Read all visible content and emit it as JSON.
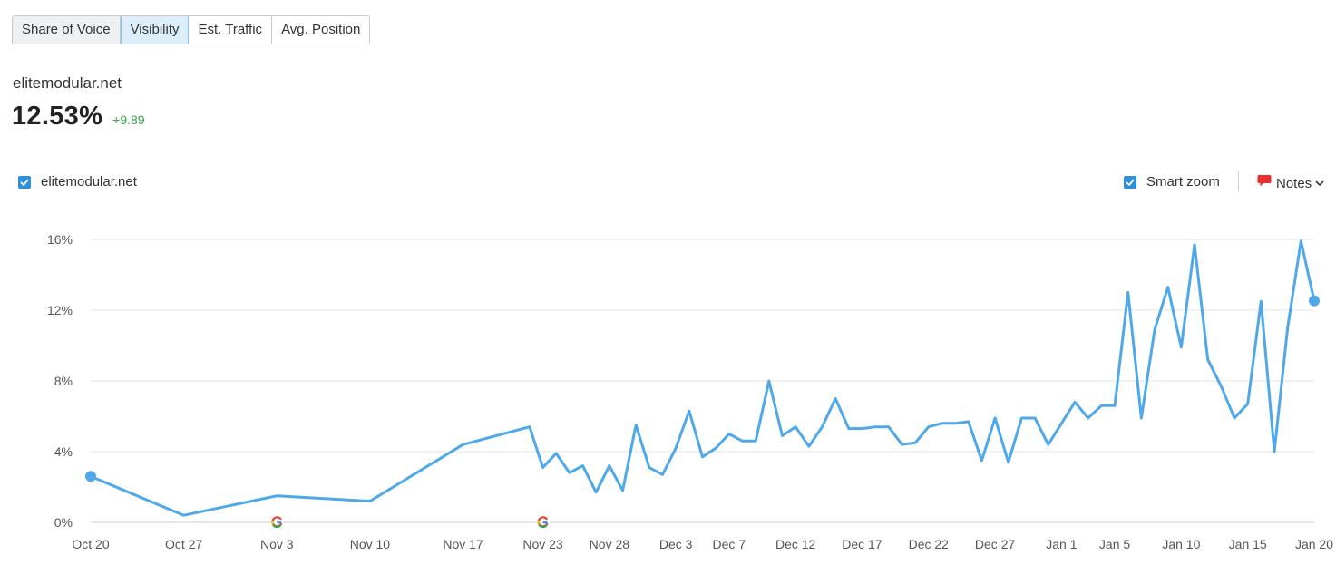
{
  "tabs": [
    {
      "label": "Share of Voice",
      "active": false
    },
    {
      "label": "Visibility",
      "active": true
    },
    {
      "label": "Est. Traffic",
      "active": false
    },
    {
      "label": "Avg. Position",
      "active": false
    }
  ],
  "domain": "elitemodular.net",
  "metric": {
    "value": "12.53%",
    "delta": "+9.89"
  },
  "legend": {
    "label": "elitemodular.net",
    "checked": true
  },
  "controls": {
    "smart_zoom_label": "Smart zoom",
    "smart_zoom_checked": true,
    "notes_label": "Notes"
  },
  "colors": {
    "line": "#4ea8ea",
    "grid": "#e3e3e3",
    "checkbox": "#2f8fd8",
    "delta": "#3aa345",
    "notes": "#e8312f"
  },
  "chart_data": {
    "type": "line",
    "title": "",
    "xlabel": "",
    "ylabel": "",
    "ylim": [
      0,
      16
    ],
    "yticks": [
      {
        "value": 0,
        "label": "0%"
      },
      {
        "value": 4,
        "label": "4%"
      },
      {
        "value": 8,
        "label": "8%"
      },
      {
        "value": 12,
        "label": "12%"
      },
      {
        "value": 16,
        "label": "16%"
      }
    ],
    "xticks": [
      {
        "day": 0,
        "label": "Oct 20"
      },
      {
        "day": 7,
        "label": "Oct 27"
      },
      {
        "day": 14,
        "label": "Nov 3"
      },
      {
        "day": 21,
        "label": "Nov 10"
      },
      {
        "day": 28,
        "label": "Nov 17"
      },
      {
        "day": 34,
        "label": "Nov 23"
      },
      {
        "day": 39,
        "label": "Nov 28"
      },
      {
        "day": 44,
        "label": "Dec 3"
      },
      {
        "day": 48,
        "label": "Dec 7"
      },
      {
        "day": 53,
        "label": "Dec 12"
      },
      {
        "day": 58,
        "label": "Dec 17"
      },
      {
        "day": 63,
        "label": "Dec 22"
      },
      {
        "day": 68,
        "label": "Dec 27"
      },
      {
        "day": 73,
        "label": "Jan 1"
      },
      {
        "day": 77,
        "label": "Jan 5"
      },
      {
        "day": 82,
        "label": "Jan 10"
      },
      {
        "day": 87,
        "label": "Jan 15"
      },
      {
        "day": 92,
        "label": "Jan 20"
      }
    ],
    "google_updates": [
      "Nov 3",
      "Nov 23"
    ],
    "grid": true,
    "series": [
      {
        "name": "elitemodular.net",
        "points": [
          [
            "Oct 20",
            2.6
          ],
          [
            "Oct 27",
            0.4
          ],
          [
            "Nov 3",
            1.5
          ],
          [
            "Nov 10",
            1.2
          ],
          [
            "Nov 17",
            4.4
          ],
          [
            "Nov 22",
            5.4
          ],
          [
            "Nov 23",
            3.1
          ],
          [
            "Nov 24",
            3.9
          ],
          [
            "Nov 25",
            2.8
          ],
          [
            "Nov 26",
            3.2
          ],
          [
            "Nov 27",
            1.7
          ],
          [
            "Nov 28",
            3.2
          ],
          [
            "Nov 29",
            1.8
          ],
          [
            "Nov 30",
            5.5
          ],
          [
            "Dec 1",
            3.1
          ],
          [
            "Dec 2",
            2.7
          ],
          [
            "Dec 3",
            4.2
          ],
          [
            "Dec 4",
            6.3
          ],
          [
            "Dec 5",
            3.7
          ],
          [
            "Dec 6",
            4.2
          ],
          [
            "Dec 7",
            5.0
          ],
          [
            "Dec 8",
            4.6
          ],
          [
            "Dec 9",
            4.6
          ],
          [
            "Dec 10",
            8.0
          ],
          [
            "Dec 11",
            4.9
          ],
          [
            "Dec 12",
            5.4
          ],
          [
            "Dec 13",
            4.3
          ],
          [
            "Dec 14",
            5.4
          ],
          [
            "Dec 15",
            7.0
          ],
          [
            "Dec 16",
            5.3
          ],
          [
            "Dec 17",
            5.3
          ],
          [
            "Dec 18",
            5.4
          ],
          [
            "Dec 19",
            5.4
          ],
          [
            "Dec 20",
            4.4
          ],
          [
            "Dec 21",
            4.5
          ],
          [
            "Dec 22",
            5.4
          ],
          [
            "Dec 23",
            5.6
          ],
          [
            "Dec 24",
            5.6
          ],
          [
            "Dec 25",
            5.7
          ],
          [
            "Dec 26",
            3.5
          ],
          [
            "Dec 27",
            5.9
          ],
          [
            "Dec 28",
            3.4
          ],
          [
            "Dec 29",
            5.9
          ],
          [
            "Dec 30",
            5.9
          ],
          [
            "Dec 31",
            4.4
          ],
          [
            "Jan 1",
            5.6
          ],
          [
            "Jan 2",
            6.8
          ],
          [
            "Jan 3",
            5.9
          ],
          [
            "Jan 4",
            6.6
          ],
          [
            "Jan 5",
            6.6
          ],
          [
            "Jan 6",
            13.0
          ],
          [
            "Jan 7",
            5.9
          ],
          [
            "Jan 8",
            10.9
          ],
          [
            "Jan 9",
            13.3
          ],
          [
            "Jan 10",
            9.9
          ],
          [
            "Jan 11",
            15.7
          ],
          [
            "Jan 12",
            9.2
          ],
          [
            "Jan 13",
            7.7
          ],
          [
            "Jan 14",
            5.9
          ],
          [
            "Jan 15",
            6.7
          ],
          [
            "Jan 16",
            12.5
          ],
          [
            "Jan 17",
            4.0
          ],
          [
            "Jan 18",
            11.0
          ],
          [
            "Jan 19",
            15.9
          ],
          [
            "Jan 20",
            12.53
          ]
        ]
      }
    ]
  }
}
